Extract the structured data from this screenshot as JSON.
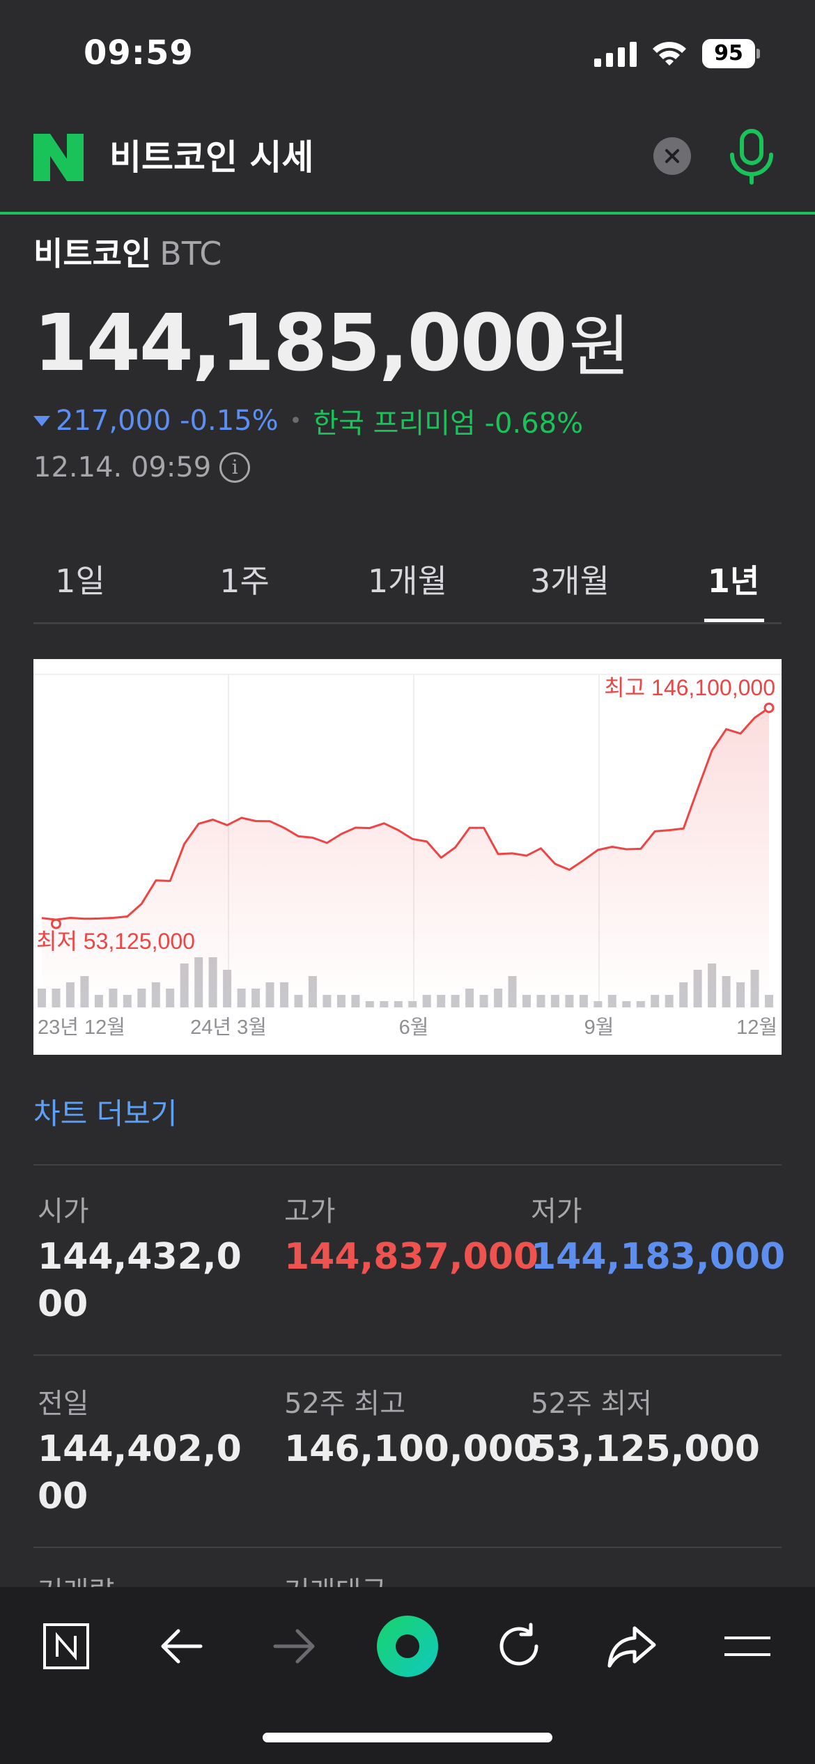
{
  "status_bar": {
    "time": "09:59",
    "battery": "95"
  },
  "search": {
    "query": "비트코인 시세"
  },
  "coin": {
    "name": "비트코인",
    "symbol": "BTC",
    "price": "144,185,000",
    "price_unit": "원",
    "change": "217,000 -0.15%",
    "premium": "한국 프리미엄 -0.68%",
    "timestamp": "12.14. 09:59",
    "colors": {
      "down": "#5d8ff0",
      "up": "#ef5350",
      "premium": "#19c35a",
      "brand": "#19c35a"
    }
  },
  "tabs": [
    {
      "label": "1일",
      "active": false
    },
    {
      "label": "1주",
      "active": false
    },
    {
      "label": "1개월",
      "active": false
    },
    {
      "label": "3개월",
      "active": false
    },
    {
      "label": "1년",
      "active": true
    }
  ],
  "chart_data": {
    "type": "line",
    "series": [
      {
        "values": [
          53.8,
          53.1,
          53.9,
          53.5,
          53.6,
          53.9,
          54.5,
          60.1,
          70.3,
          70.1,
          86.4,
          95.2,
          97.0,
          94.6,
          97.8,
          96.4,
          96.3,
          93.4,
          89.7,
          89.1,
          86.8,
          90.7,
          93.5,
          93.3,
          95.4,
          92.4,
          88.5,
          87.4,
          80.3,
          84.8,
          93.4,
          93.4,
          81.9,
          82.2,
          81.2,
          84.4,
          77.6,
          75.0,
          79.2,
          83.7,
          85.1,
          84.0,
          84.2,
          91.9,
          92.4,
          93.1,
          110.4,
          127.4,
          136.7,
          134.8,
          141.8,
          146.1
        ]
      }
    ],
    "volume": [
      3,
      3,
      4,
      5,
      2,
      3,
      2,
      3,
      4,
      3,
      7,
      8,
      8,
      6,
      3,
      3,
      4,
      4,
      2,
      5,
      2,
      2,
      2,
      1,
      1,
      1,
      1,
      2,
      2,
      2,
      3,
      2,
      3,
      5,
      2,
      2,
      2,
      2,
      2,
      1,
      2,
      1,
      1,
      2,
      2,
      4,
      6,
      7,
      5,
      4,
      6,
      2
    ],
    "x_ticks": [
      "23년 12월",
      "24년 3월",
      "6월",
      "9월",
      "12월"
    ],
    "annotations": {
      "high": "최고 146,100,000",
      "low": "최저 53,125,000"
    },
    "ylim": [
      50,
      150
    ],
    "colors": {
      "line": "#ef4444",
      "volume": "#c8c8cc",
      "grid": "#eeeeee"
    }
  },
  "more_chart_label": "차트 더보기",
  "stats": [
    {
      "label": "시가",
      "value": "144,432,000",
      "tone": "normal"
    },
    {
      "label": "고가",
      "value": "144,837,000",
      "tone": "red"
    },
    {
      "label": "저가",
      "value": "144,183,000",
      "tone": "blue"
    },
    {
      "label": "전일",
      "value": "144,402,000",
      "tone": "normal"
    },
    {
      "label": "52주 최고",
      "value": "146,100,000",
      "tone": "normal"
    },
    {
      "label": "52주 최저",
      "value": "53,125,000",
      "tone": "normal"
    }
  ],
  "cut_labels": [
    "거래량",
    "거래대금"
  ],
  "nav": [
    "naver-home-icon",
    "back-arrow-icon",
    "forward-arrow-icon",
    "green-dot-icon",
    "refresh-icon",
    "share-icon",
    "menu-icon"
  ]
}
